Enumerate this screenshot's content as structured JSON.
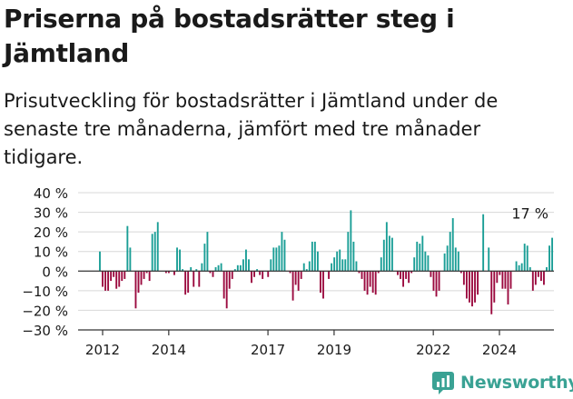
{
  "header": {
    "title": "Priserna på bostadsrätter steg i Jämtland",
    "subtitle": "Prisutveckling för bostadsrätter i Jämtland under de senaste tre månaderna, jämfört med tre månader tidigare."
  },
  "brand": {
    "name": "Newsworthy"
  },
  "colors": {
    "positive": "#1a9e96",
    "negative": "#9b0a3f",
    "axis": "#333333",
    "grid": "#d8d8d8",
    "text": "#1a1a1a",
    "brand": "#3aa294"
  },
  "chart_data": {
    "type": "bar",
    "title": "",
    "xlabel": "",
    "ylabel": "",
    "ylim": [
      -30,
      40
    ],
    "y_ticks": [
      40,
      30,
      20,
      10,
      0,
      -10,
      -20,
      -30
    ],
    "y_tick_labels": [
      "40 %",
      "30 %",
      "20 %",
      "10 %",
      "0 %",
      "−10 %",
      "−20 %",
      "−30 %"
    ],
    "x_ticks": [
      {
        "x": 2012.0,
        "label": "2012"
      },
      {
        "x": 2014.0,
        "label": "2014"
      },
      {
        "x": 2017.0,
        "label": "2017"
      },
      {
        "x": 2019.0,
        "label": "2019"
      },
      {
        "x": 2022.0,
        "label": "2022"
      },
      {
        "x": 2024.0,
        "label": "2024"
      }
    ],
    "start": 2011.917,
    "step": 0.0834,
    "values": [
      10,
      -8,
      -10,
      -10,
      -5,
      -3,
      -9,
      -8,
      -5,
      -4,
      23,
      12,
      0,
      -19,
      -11,
      -7,
      -4,
      -1,
      -5,
      19,
      20,
      25,
      0,
      0,
      -1,
      -1,
      0,
      -2,
      12,
      11,
      1,
      -12,
      -11,
      2,
      -8,
      1,
      -8,
      4,
      14,
      20,
      -1,
      -3,
      2,
      3,
      4,
      -14,
      -19,
      -9,
      -4,
      1,
      3,
      3,
      6,
      11,
      6,
      -6,
      -3,
      1,
      -2,
      -4,
      0,
      -3,
      6,
      12,
      12,
      13,
      20,
      16,
      0,
      -1,
      -15,
      -7,
      -10,
      -4,
      4,
      1,
      5,
      15,
      15,
      10,
      -11,
      -14,
      0,
      -4,
      4,
      7,
      10,
      11,
      6,
      6,
      20,
      31,
      15,
      5,
      -1,
      -4,
      -10,
      -12,
      -8,
      -11,
      -12,
      -1,
      7,
      16,
      25,
      18,
      17,
      0,
      -2,
      -4,
      -8,
      -4,
      -6,
      -1,
      7,
      15,
      14,
      18,
      10,
      8,
      -3,
      -10,
      -13,
      -10,
      0,
      9,
      13,
      20,
      27,
      12,
      10,
      -1,
      -7,
      -14,
      -16,
      -18,
      -16,
      -12,
      0,
      29,
      0,
      12,
      -22,
      -16,
      -6,
      -2,
      -9,
      -9,
      -17,
      -9,
      0,
      5,
      3,
      4,
      14,
      13,
      2,
      -10,
      -7,
      -3,
      -5,
      -7,
      2,
      13,
      17
    ],
    "last_label": "17 %"
  }
}
